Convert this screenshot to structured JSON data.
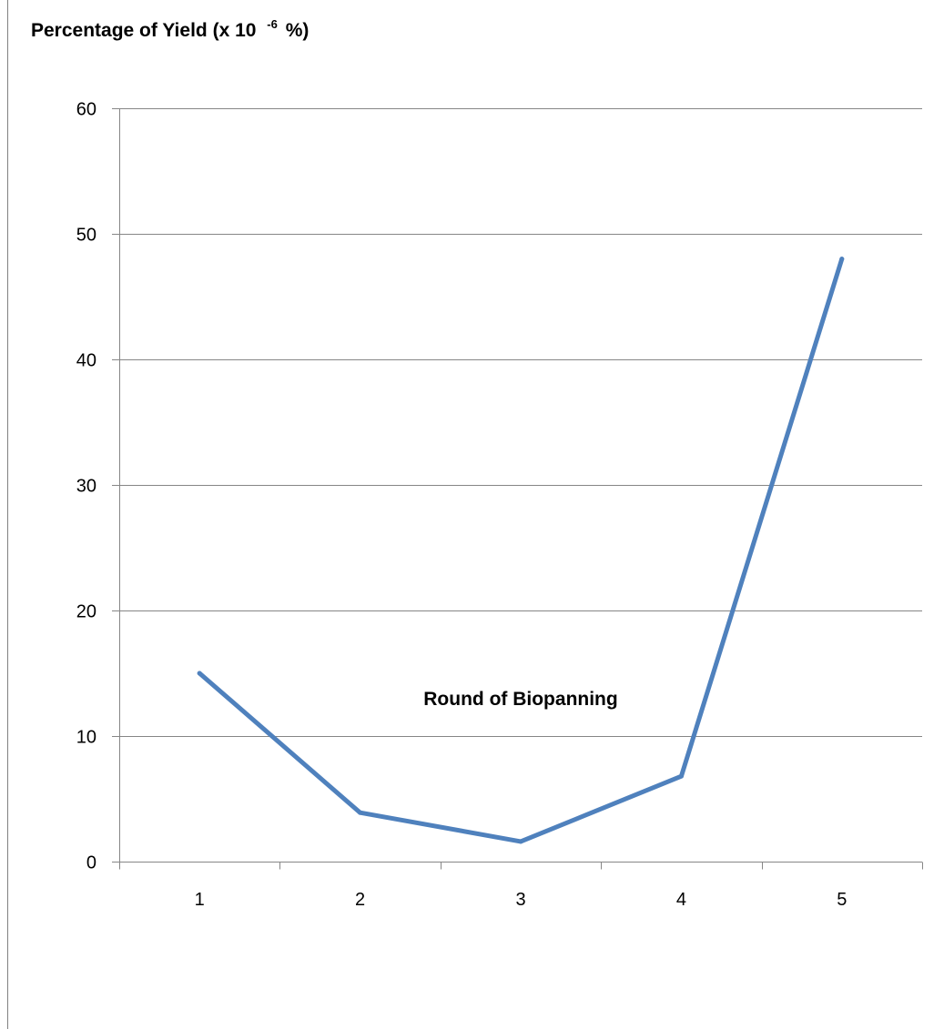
{
  "chart_data": {
    "type": "line",
    "ylabel": {
      "prefix": "Percentage of Yield (x 10",
      "superscript": "-6",
      "suffix": "%)"
    },
    "xlabel": "Round of Biopanning",
    "categories": [
      "1",
      "2",
      "3",
      "4",
      "5"
    ],
    "ylim": [
      0,
      60
    ],
    "yticks": [
      "0",
      "10",
      "20",
      "30",
      "40",
      "50",
      "60"
    ],
    "grid": true,
    "legend": "none",
    "series": [
      {
        "color": "#4F81BD",
        "values": [
          15,
          3.9,
          1.6,
          6.8,
          48
        ]
      }
    ]
  }
}
